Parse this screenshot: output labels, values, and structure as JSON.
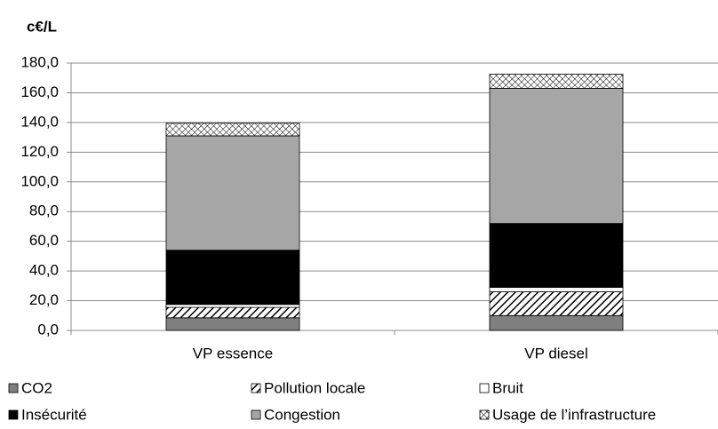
{
  "chart_data": {
    "type": "stacked-bar",
    "title": "c€/L",
    "categories": [
      "VP essence",
      "VP diesel"
    ],
    "series": [
      {
        "name": "CO2",
        "color": "#7f7f7f",
        "pattern": "solid",
        "values": [
          8.5,
          10
        ]
      },
      {
        "name": "Pollution locale",
        "color": "#000000",
        "pattern": "diagonal",
        "values": [
          7,
          16
        ]
      },
      {
        "name": "Bruit",
        "color": "#ffffff",
        "pattern": "solid",
        "values": [
          2,
          3
        ]
      },
      {
        "name": "Insécurité",
        "color": "#000000",
        "pattern": "solid",
        "values": [
          36.5,
          43
        ]
      },
      {
        "name": "Congestion",
        "color": "#a6a6a6",
        "pattern": "solid",
        "values": [
          77,
          91
        ]
      },
      {
        "name": "Usage de l’infrastructure",
        "color": "#000000",
        "pattern": "crosshatch",
        "values": [
          8.5,
          9.5
        ]
      }
    ],
    "ylim": [
      0,
      180
    ],
    "yticks": [
      {
        "value": 0,
        "label": "0,0"
      },
      {
        "value": 20,
        "label": "20,0"
      },
      {
        "value": 40,
        "label": "40,0"
      },
      {
        "value": 60,
        "label": "60,0"
      },
      {
        "value": 80,
        "label": "80,0"
      },
      {
        "value": 100,
        "label": "100,0"
      },
      {
        "value": 120,
        "label": "120,0"
      },
      {
        "value": 140,
        "label": "140,0"
      },
      {
        "value": 160,
        "label": "160,0"
      },
      {
        "value": 180,
        "label": "180,0"
      }
    ],
    "grid": true
  }
}
